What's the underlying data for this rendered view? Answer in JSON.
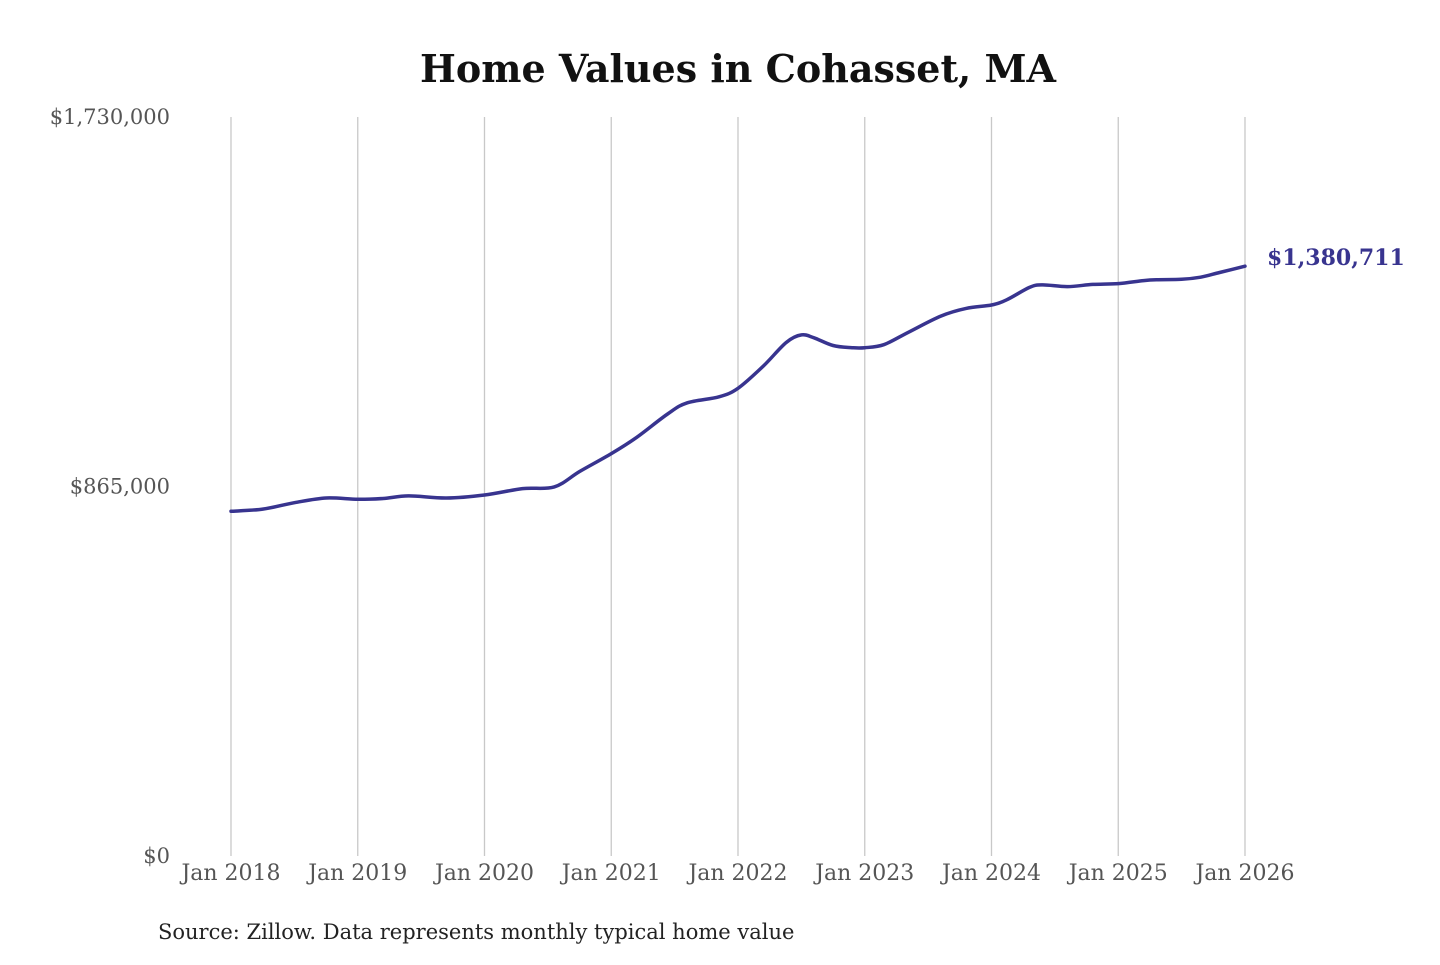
{
  "chart_data": {
    "type": "line",
    "title": "Home Values in Cohasset, MA",
    "xlabel": "",
    "ylabel": "",
    "ylim": [
      0,
      1730000
    ],
    "yticks": [
      {
        "value": 0,
        "label": "$0"
      },
      {
        "value": 865000,
        "label": "$865,000"
      },
      {
        "value": 1730000,
        "label": "$1,730,000"
      }
    ],
    "xticks": [
      {
        "value": 2018,
        "label": "Jan 2018"
      },
      {
        "value": 2019,
        "label": "Jan 2019"
      },
      {
        "value": 2020,
        "label": "Jan 2020"
      },
      {
        "value": 2021,
        "label": "Jan 2021"
      },
      {
        "value": 2022,
        "label": "Jan 2022"
      },
      {
        "value": 2023,
        "label": "Jan 2023"
      },
      {
        "value": 2024,
        "label": "Jan 2024"
      },
      {
        "value": 2025,
        "label": "Jan 2025"
      },
      {
        "value": 2026,
        "label": "Jan 2026"
      }
    ],
    "xlim": [
      2018,
      2026
    ],
    "grid": "vertical",
    "line_color": "#38348f",
    "end_label": "$1,380,711",
    "series": [
      {
        "x": [
          2018.0,
          2018.25,
          2018.5,
          2018.75,
          2019.0,
          2019.2,
          2019.4,
          2019.7,
          2020.0,
          2020.3,
          2020.55,
          2020.75,
          2021.0,
          2021.2,
          2021.45,
          2021.6,
          2021.85,
          2022.0,
          2022.2,
          2022.38,
          2022.5,
          2022.6,
          2022.75,
          2022.9,
          2023.0,
          2023.15,
          2023.35,
          2023.6,
          2023.8,
          2024.0,
          2024.12,
          2024.3,
          2024.4,
          2024.6,
          2024.8,
          2025.0,
          2025.2,
          2025.3,
          2025.5,
          2025.65,
          2025.8,
          2026.0
        ],
        "y": [
          807000,
          812000,
          827000,
          838000,
          835000,
          837000,
          843000,
          838000,
          845000,
          860000,
          864000,
          900000,
          942000,
          980000,
          1036000,
          1061000,
          1075000,
          1095000,
          1147000,
          1202000,
          1220000,
          1213000,
          1195000,
          1190000,
          1190000,
          1197000,
          1227000,
          1264000,
          1282000,
          1290000,
          1302000,
          1331000,
          1337000,
          1333000,
          1338000,
          1340000,
          1347000,
          1349000,
          1350000,
          1355000,
          1366000,
          1380711
        ]
      }
    ]
  },
  "source": "Source: Zillow. Data represents monthly typical home value"
}
